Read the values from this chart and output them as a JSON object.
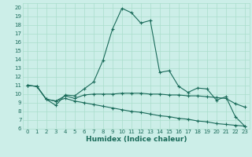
{
  "xlabel": "Humidex (Indice chaleur)",
  "ylabel": "",
  "bg_color": "#cceee8",
  "grid_color": "#aaddcc",
  "line_color": "#1a6b5a",
  "xlim": [
    -0.5,
    23.5
  ],
  "ylim": [
    6,
    20.5
  ],
  "xticks": [
    0,
    1,
    2,
    3,
    4,
    5,
    6,
    7,
    8,
    9,
    10,
    11,
    12,
    13,
    14,
    15,
    16,
    17,
    18,
    19,
    20,
    21,
    22,
    23
  ],
  "yticks": [
    6,
    7,
    8,
    9,
    10,
    11,
    12,
    13,
    14,
    15,
    16,
    17,
    18,
    19,
    20
  ],
  "series": [
    {
      "x": [
        0,
        1,
        2,
        3,
        4,
        5,
        6,
        7,
        8,
        9,
        10,
        11,
        12,
        13,
        14,
        15,
        16,
        17,
        18,
        19,
        20,
        21,
        22,
        23
      ],
      "y": [
        11.0,
        10.9,
        9.4,
        8.7,
        9.9,
        9.8,
        10.6,
        11.4,
        13.9,
        17.5,
        19.9,
        19.4,
        18.2,
        18.5,
        12.5,
        12.7,
        10.9,
        10.2,
        10.7,
        10.6,
        9.3,
        9.7,
        7.4,
        6.3
      ],
      "marker": "+"
    },
    {
      "x": [
        0,
        1,
        2,
        3,
        4,
        5,
        6,
        7,
        8,
        9,
        10,
        11,
        12,
        13,
        14,
        15,
        16,
        17,
        18,
        19,
        20,
        21,
        22,
        23
      ],
      "y": [
        11.0,
        10.9,
        9.4,
        9.2,
        9.8,
        9.5,
        9.9,
        10.0,
        10.0,
        10.0,
        10.1,
        10.1,
        10.1,
        10.0,
        10.0,
        9.9,
        9.9,
        9.8,
        9.8,
        9.7,
        9.6,
        9.5,
        8.9,
        8.5
      ],
      "marker": "+"
    },
    {
      "x": [
        0,
        1,
        2,
        3,
        4,
        5,
        6,
        7,
        8,
        9,
        10,
        11,
        12,
        13,
        14,
        15,
        16,
        17,
        18,
        19,
        20,
        21,
        22,
        23
      ],
      "y": [
        11.0,
        10.9,
        9.4,
        9.2,
        9.5,
        9.2,
        9.0,
        8.8,
        8.6,
        8.4,
        8.2,
        8.0,
        7.9,
        7.7,
        7.5,
        7.4,
        7.2,
        7.1,
        6.9,
        6.8,
        6.6,
        6.5,
        6.4,
        6.3
      ],
      "marker": "+"
    }
  ]
}
